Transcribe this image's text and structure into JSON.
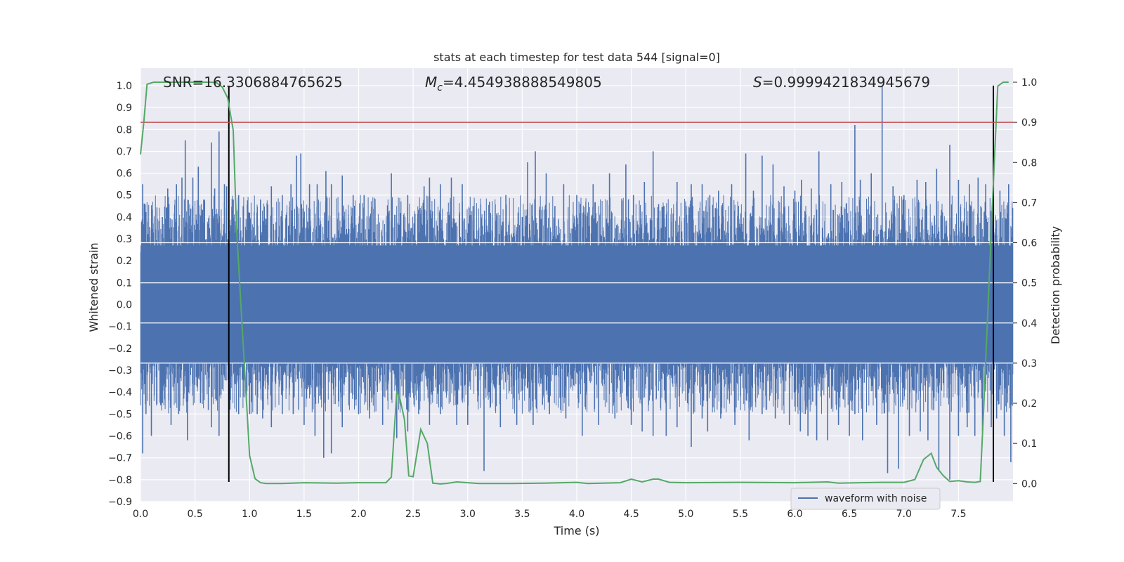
{
  "chart_data": {
    "type": "line",
    "title": "stats at each timestep for test data 544 [signal=0]",
    "xlabel": "Time (s)",
    "ylabel": "Whitened strain",
    "y2label": "Detection probability",
    "xlim": [
      0.0,
      8.0
    ],
    "ylim": [
      -0.9,
      1.08
    ],
    "y2lim": [
      -0.045,
      1.035
    ],
    "x_ticks": [
      "0.0",
      "0.5",
      "1.0",
      "1.5",
      "2.0",
      "2.5",
      "3.0",
      "3.5",
      "4.0",
      "4.5",
      "5.0",
      "5.5",
      "6.0",
      "6.5",
      "7.0",
      "7.5"
    ],
    "x_tick_values": [
      0.0,
      0.5,
      1.0,
      1.5,
      2.0,
      2.5,
      3.0,
      3.5,
      4.0,
      4.5,
      5.0,
      5.5,
      6.0,
      6.5,
      7.0,
      7.5
    ],
    "y_ticks": [
      "1.0",
      "0.9",
      "0.8",
      "0.7",
      "0.6",
      "0.5",
      "0.4",
      "0.3",
      "0.2",
      "0.1",
      "0.0",
      "−0.1",
      "−0.2",
      "−0.3",
      "−0.4",
      "−0.5",
      "−0.6",
      "−0.7",
      "−0.8",
      "−0.9"
    ],
    "y_tick_values": [
      1.0,
      0.9,
      0.8,
      0.7,
      0.6,
      0.5,
      0.4,
      0.3,
      0.2,
      0.1,
      0.0,
      -0.1,
      -0.2,
      -0.3,
      -0.4,
      -0.5,
      -0.6,
      -0.7,
      -0.8,
      -0.9
    ],
    "y2_ticks": [
      "1.0",
      "0.9",
      "0.8",
      "0.7",
      "0.6",
      "0.5",
      "0.4",
      "0.3",
      "0.2",
      "0.1",
      "0.0"
    ],
    "y2_tick_values": [
      1.0,
      0.9,
      0.8,
      0.7,
      0.6,
      0.5,
      0.4,
      0.3,
      0.2,
      0.1,
      0.0
    ],
    "grid": true,
    "legend_position": "bottom-right",
    "annotations": {
      "snr": "SNR=16.3306884765625",
      "mc_symbol": "M",
      "mc_subscript": "c",
      "mc_value": "=4.454938888549805",
      "s_symbol": "S",
      "s_value": "=0.9999421834945679"
    },
    "series": [
      {
        "name": "waveform with noise",
        "color": "#4c72b0",
        "axis": "left",
        "description": "dense noisy strain, envelope about ±0.3 with peaks to ±0.8",
        "peaks_pos": [
          [
            0.02,
            0.55
          ],
          [
            0.1,
            0.35
          ],
          [
            0.2,
            0.4
          ],
          [
            0.25,
            0.53
          ],
          [
            0.33,
            0.55
          ],
          [
            0.38,
            0.58
          ],
          [
            0.41,
            0.75
          ],
          [
            0.48,
            0.58
          ],
          [
            0.53,
            0.63
          ],
          [
            0.58,
            0.48
          ],
          [
            0.65,
            0.74
          ],
          [
            0.68,
            0.53
          ],
          [
            0.72,
            0.79
          ],
          [
            0.77,
            0.55
          ],
          [
            0.79,
            0.54
          ],
          [
            0.85,
            0.48
          ],
          [
            0.9,
            0.5
          ],
          [
            1.0,
            0.42
          ],
          [
            1.1,
            0.48
          ],
          [
            1.2,
            0.54
          ],
          [
            1.3,
            0.5
          ],
          [
            1.38,
            0.55
          ],
          [
            1.43,
            0.68
          ],
          [
            1.47,
            0.69
          ],
          [
            1.55,
            0.55
          ],
          [
            1.62,
            0.55
          ],
          [
            1.7,
            0.61
          ],
          [
            1.75,
            0.55
          ],
          [
            1.85,
            0.59
          ],
          [
            1.95,
            0.5
          ],
          [
            2.05,
            0.5
          ],
          [
            2.15,
            0.45
          ],
          [
            2.3,
            0.6
          ],
          [
            2.45,
            0.5
          ],
          [
            2.6,
            0.54
          ],
          [
            2.65,
            0.58
          ],
          [
            2.75,
            0.55
          ],
          [
            2.85,
            0.58
          ],
          [
            2.95,
            0.55
          ],
          [
            3.05,
            0.45
          ],
          [
            3.2,
            0.47
          ],
          [
            3.35,
            0.5
          ],
          [
            3.5,
            0.4
          ],
          [
            3.55,
            0.65
          ],
          [
            3.62,
            0.7
          ],
          [
            3.72,
            0.6
          ],
          [
            3.8,
            0.45
          ],
          [
            3.88,
            0.55
          ],
          [
            4.0,
            0.5
          ],
          [
            4.15,
            0.55
          ],
          [
            4.3,
            0.6
          ],
          [
            4.45,
            0.64
          ],
          [
            4.52,
            0.5
          ],
          [
            4.62,
            0.56
          ],
          [
            4.7,
            0.7
          ],
          [
            4.8,
            0.45
          ],
          [
            4.92,
            0.56
          ],
          [
            5.05,
            0.55
          ],
          [
            5.15,
            0.55
          ],
          [
            5.22,
            0.5
          ],
          [
            5.3,
            0.52
          ],
          [
            5.42,
            0.55
          ],
          [
            5.55,
            0.69
          ],
          [
            5.62,
            0.52
          ],
          [
            5.7,
            0.68
          ],
          [
            5.8,
            0.64
          ],
          [
            5.9,
            0.54
          ],
          [
            6.0,
            0.52
          ],
          [
            6.06,
            0.57
          ],
          [
            6.15,
            0.53
          ],
          [
            6.22,
            0.7
          ],
          [
            6.33,
            0.55
          ],
          [
            6.43,
            0.56
          ],
          [
            6.55,
            0.82
          ],
          [
            6.6,
            0.57
          ],
          [
            6.7,
            0.6
          ],
          [
            6.8,
            1.0
          ],
          [
            6.9,
            0.54
          ],
          [
            7.0,
            0.5
          ],
          [
            7.12,
            0.57
          ],
          [
            7.2,
            0.56
          ],
          [
            7.3,
            0.62
          ],
          [
            7.42,
            0.73
          ],
          [
            7.5,
            0.57
          ],
          [
            7.6,
            0.55
          ],
          [
            7.68,
            0.58
          ],
          [
            7.75,
            0.55
          ],
          [
            7.88,
            0.52
          ],
          [
            7.96,
            0.55
          ]
        ],
        "peaks_neg": [
          [
            0.02,
            -0.68
          ],
          [
            0.05,
            -0.5
          ],
          [
            0.1,
            -0.6
          ],
          [
            0.2,
            -0.45
          ],
          [
            0.28,
            -0.55
          ],
          [
            0.35,
            -0.5
          ],
          [
            0.43,
            -0.62
          ],
          [
            0.55,
            -0.45
          ],
          [
            0.65,
            -0.56
          ],
          [
            0.72,
            -0.6
          ],
          [
            0.82,
            -0.48
          ],
          [
            0.9,
            -0.5
          ],
          [
            1.0,
            -0.5
          ],
          [
            1.07,
            -0.5
          ],
          [
            1.12,
            -0.52
          ],
          [
            1.2,
            -0.56
          ],
          [
            1.3,
            -0.5
          ],
          [
            1.4,
            -0.5
          ],
          [
            1.5,
            -0.55
          ],
          [
            1.6,
            -0.6
          ],
          [
            1.68,
            -0.7
          ],
          [
            1.75,
            -0.68
          ],
          [
            1.85,
            -0.56
          ],
          [
            2.0,
            -0.5
          ],
          [
            2.1,
            -0.52
          ],
          [
            2.22,
            -0.55
          ],
          [
            2.35,
            -0.61
          ],
          [
            2.45,
            -0.58
          ],
          [
            2.55,
            -0.5
          ],
          [
            2.65,
            -0.55
          ],
          [
            2.75,
            -0.5
          ],
          [
            2.9,
            -0.55
          ],
          [
            3.0,
            -0.55
          ],
          [
            3.15,
            -0.76
          ],
          [
            3.3,
            -0.56
          ],
          [
            3.45,
            -0.55
          ],
          [
            3.6,
            -0.55
          ],
          [
            3.75,
            -0.5
          ],
          [
            3.9,
            -0.52
          ],
          [
            4.05,
            -0.6
          ],
          [
            4.2,
            -0.55
          ],
          [
            4.35,
            -0.52
          ],
          [
            4.5,
            -0.55
          ],
          [
            4.6,
            -0.58
          ],
          [
            4.7,
            -0.6
          ],
          [
            4.82,
            -0.6
          ],
          [
            4.92,
            -0.56
          ],
          [
            5.05,
            -0.65
          ],
          [
            5.15,
            -0.52
          ],
          [
            5.2,
            -0.58
          ],
          [
            5.32,
            -0.52
          ],
          [
            5.45,
            -0.55
          ],
          [
            5.58,
            -0.62
          ],
          [
            5.7,
            -0.5
          ],
          [
            5.82,
            -0.52
          ],
          [
            5.95,
            -0.55
          ],
          [
            6.05,
            -0.58
          ],
          [
            6.12,
            -0.6
          ],
          [
            6.2,
            -0.62
          ],
          [
            6.3,
            -0.62
          ],
          [
            6.4,
            -0.55
          ],
          [
            6.5,
            -0.6
          ],
          [
            6.55,
            -0.5
          ],
          [
            6.62,
            -0.62
          ],
          [
            6.75,
            -0.55
          ],
          [
            6.85,
            -0.77
          ],
          [
            6.95,
            -0.75
          ],
          [
            7.05,
            -0.6
          ],
          [
            7.15,
            -0.58
          ],
          [
            7.22,
            -0.62
          ],
          [
            7.32,
            -0.76
          ],
          [
            7.42,
            -0.8
          ],
          [
            7.5,
            -0.6
          ],
          [
            7.58,
            -0.56
          ],
          [
            7.65,
            -0.6
          ],
          [
            7.72,
            -0.58
          ],
          [
            7.8,
            -0.56
          ],
          [
            7.85,
            -0.52
          ],
          [
            7.92,
            -0.6
          ],
          [
            7.98,
            -0.72
          ]
        ]
      },
      {
        "name": "detection probability",
        "color": "#55a868",
        "axis": "right",
        "x": [
          0.0,
          0.03,
          0.06,
          0.12,
          0.2,
          0.3,
          0.4,
          0.5,
          0.6,
          0.65,
          0.7,
          0.75,
          0.8,
          0.85,
          0.88,
          0.93,
          1.0,
          1.05,
          1.1,
          1.15,
          1.3,
          1.5,
          1.8,
          2.0,
          2.25,
          2.3,
          2.35,
          2.38,
          2.42,
          2.46,
          2.5,
          2.57,
          2.63,
          2.68,
          2.75,
          2.8,
          2.9,
          3.0,
          3.1,
          3.4,
          3.7,
          4.0,
          4.1,
          4.4,
          4.5,
          4.6,
          4.7,
          4.75,
          4.85,
          5.0,
          5.5,
          6.0,
          6.3,
          6.4,
          6.6,
          6.8,
          7.0,
          7.1,
          7.18,
          7.25,
          7.3,
          7.36,
          7.42,
          7.5,
          7.58,
          7.65,
          7.7,
          7.73,
          7.8,
          7.86,
          7.91,
          7.96
        ],
        "y": [
          0.82,
          0.9,
          0.995,
          1.0,
          1.0,
          1.0,
          1.0,
          1.0,
          1.0,
          1.0,
          0.998,
          0.988,
          0.96,
          0.88,
          0.64,
          0.4,
          0.07,
          0.012,
          0.002,
          0.0,
          0.0,
          0.002,
          0.001,
          0.002,
          0.002,
          0.016,
          0.23,
          0.21,
          0.16,
          0.019,
          0.017,
          0.135,
          0.1,
          0.001,
          -0.001,
          0.0,
          0.004,
          0.002,
          0.0,
          0.0,
          0.001,
          0.003,
          0.0,
          0.002,
          0.011,
          0.004,
          0.011,
          0.011,
          0.003,
          0.002,
          0.003,
          0.002,
          0.004,
          0.001,
          0.002,
          0.003,
          0.003,
          0.01,
          0.06,
          0.075,
          0.04,
          0.02,
          0.005,
          0.007,
          0.004,
          0.003,
          0.005,
          0.18,
          0.63,
          0.99,
          1.0,
          1.0
        ]
      }
    ],
    "threshold_line": {
      "color": "#c44e52",
      "y2": 0.9
    },
    "vertical_lines": {
      "color": "#000000",
      "x": [
        0.81,
        7.82
      ],
      "y_range": [
        -0.81,
        1.0
      ]
    }
  }
}
